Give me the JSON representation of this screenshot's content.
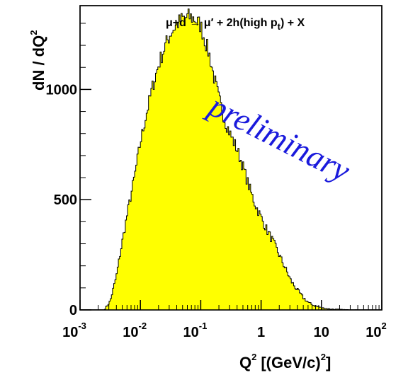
{
  "chart_data": {
    "type": "histogram",
    "x_scale": "log",
    "xlim": [
      0.001,
      100
    ],
    "ylim": [
      0,
      1380
    ],
    "grid": false,
    "legend": "none",
    "fill_color": "#ffff00",
    "line_color": "#000000",
    "ylabel": "dN / dQ",
    "ylabel_sup": "2",
    "xlabel_main": "Q",
    "xlabel_sup1": "2",
    "xlabel_unit": "[(GeV/c)",
    "xlabel_sup2": "2",
    "xlabel_close": "]",
    "annotation_reaction": "μ+d → μ′ + 2h(high p",
    "annotation_sub": "t",
    "annotation_tail": ") + X",
    "watermark": "preliminary",
    "y_ticks": [
      {
        "value": 0,
        "label": "0"
      },
      {
        "value": 500,
        "label": "500"
      },
      {
        "value": 1000,
        "label": "1000"
      }
    ],
    "x_ticks": [
      {
        "value": 0.001,
        "base": "10",
        "exp": "-3"
      },
      {
        "value": 0.01,
        "base": "10",
        "exp": "-2"
      },
      {
        "value": 0.1,
        "base": "10",
        "exp": "-1"
      },
      {
        "value": 1,
        "base": "1",
        "exp": ""
      },
      {
        "value": 10,
        "base": "10",
        "exp": ""
      },
      {
        "value": 100,
        "base": "10",
        "exp": "2"
      }
    ],
    "profile_log10q": [
      -3.0,
      -2.6,
      -2.5,
      -2.4,
      -2.3,
      -2.2,
      -2.1,
      -2.0,
      -1.9,
      -1.8,
      -1.7,
      -1.6,
      -1.5,
      -1.4,
      -1.3,
      -1.2,
      -1.1,
      -1.0,
      -0.95,
      -0.85,
      -0.8,
      -0.7,
      -0.6,
      -0.5,
      -0.4,
      -0.3,
      -0.2,
      -0.1,
      0.0,
      0.1,
      0.2,
      0.3,
      0.4,
      0.5,
      0.6,
      0.7,
      0.8,
      0.9,
      1.0,
      1.1,
      1.2,
      1.3,
      1.4,
      1.6,
      2.0
    ],
    "profile_counts": [
      0,
      0,
      40,
      150,
      310,
      460,
      600,
      760,
      890,
      1010,
      1110,
      1190,
      1255,
      1295,
      1320,
      1330,
      1320,
      1290,
      1240,
      1150,
      1080,
      960,
      860,
      790,
      730,
      650,
      560,
      480,
      420,
      360,
      310,
      250,
      190,
      130,
      90,
      55,
      30,
      18,
      10,
      5,
      3,
      2,
      1,
      0,
      0
    ]
  }
}
